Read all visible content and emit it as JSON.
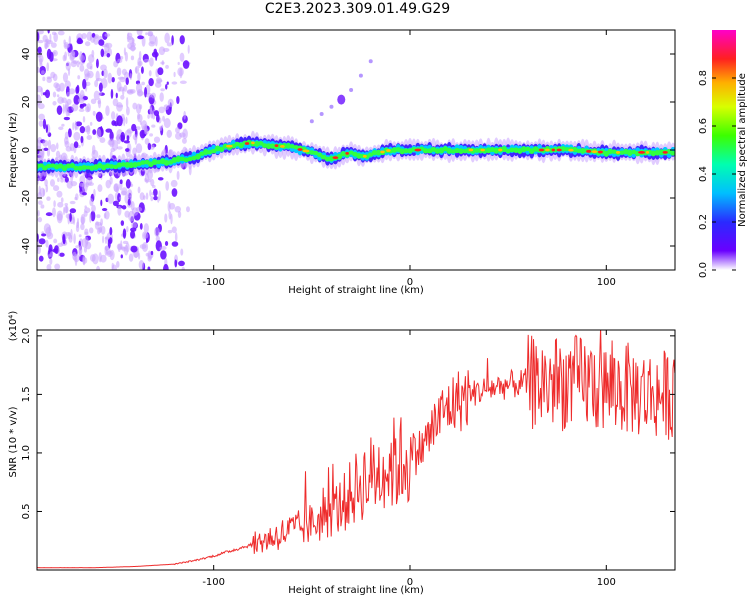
{
  "title": "C2E3.2023.309.01.49.G29",
  "chart_data": [
    {
      "type": "heatmap",
      "title": "",
      "xlabel": "Height of straight line (km)",
      "ylabel": "Frequency (Hz)",
      "xlim": [
        -190,
        135
      ],
      "ylim": [
        -50,
        50
      ],
      "x_ticks": [
        -100,
        0,
        100
      ],
      "y_ticks": [
        -40,
        -20,
        0,
        20,
        40
      ],
      "colorbar": {
        "label": "Normalized spectral amplitude",
        "range": [
          0.0,
          1.0
        ],
        "ticks": [
          "0.0",
          "0.2",
          "0.4",
          "0.6",
          "0.8"
        ]
      },
      "ridge_line": {
        "x": [
          -190,
          -160,
          -140,
          -125,
          -110,
          -100,
          -90,
          -80,
          -70,
          -60,
          -50,
          -40,
          -35,
          -30,
          -25,
          -20,
          -10,
          0,
          20,
          40,
          60,
          80,
          100,
          120,
          135
        ],
        "y": [
          -7,
          -7,
          -6,
          -5,
          -3,
          0,
          2,
          3,
          2,
          1,
          -1,
          -4,
          -2,
          -1,
          -3,
          -2,
          0,
          0,
          0,
          0,
          0,
          0,
          -1,
          -1,
          -1
        ]
      },
      "secondary_feature": {
        "x": [
          -50,
          -45,
          -40,
          -35,
          -30,
          -25,
          -20
        ],
        "y": [
          12,
          15,
          18,
          21,
          25,
          31,
          37
        ]
      }
    },
    {
      "type": "line",
      "title": "",
      "xlabel": "Height of straight line (km)",
      "ylabel": "SNR (10 * v/v)",
      "y_multiplier": "(x10⁴)",
      "xlim": [
        -190,
        135
      ],
      "ylim": [
        0,
        2.05
      ],
      "x_ticks": [
        -100,
        0,
        100
      ],
      "y_ticks": [
        0.5,
        1.0,
        1.5,
        2.0
      ],
      "grid": false,
      "series": [
        {
          "color": "#ee2b2b",
          "x": [
            -190,
            -160,
            -140,
            -120,
            -110,
            -100,
            -90,
            -80,
            -75,
            -70,
            -65,
            -60,
            -55,
            -50,
            -45,
            -40,
            -35,
            -30,
            -25,
            -20,
            -15,
            -10,
            -5,
            0,
            5,
            10,
            15,
            20,
            25,
            30,
            40,
            50,
            60,
            70,
            80,
            90,
            100,
            110,
            120,
            130,
            135
          ],
          "y": [
            0.02,
            0.02,
            0.03,
            0.05,
            0.08,
            0.12,
            0.17,
            0.22,
            0.25,
            0.28,
            0.31,
            0.34,
            0.36,
            0.4,
            0.43,
            0.5,
            0.55,
            0.65,
            0.75,
            0.8,
            0.85,
            0.9,
            0.92,
            0.98,
            1.02,
            1.15,
            1.3,
            1.4,
            1.45,
            1.5,
            1.55,
            1.58,
            1.6,
            1.6,
            1.6,
            1.6,
            1.55,
            1.55,
            1.5,
            1.5,
            1.5
          ]
        }
      ]
    }
  ]
}
